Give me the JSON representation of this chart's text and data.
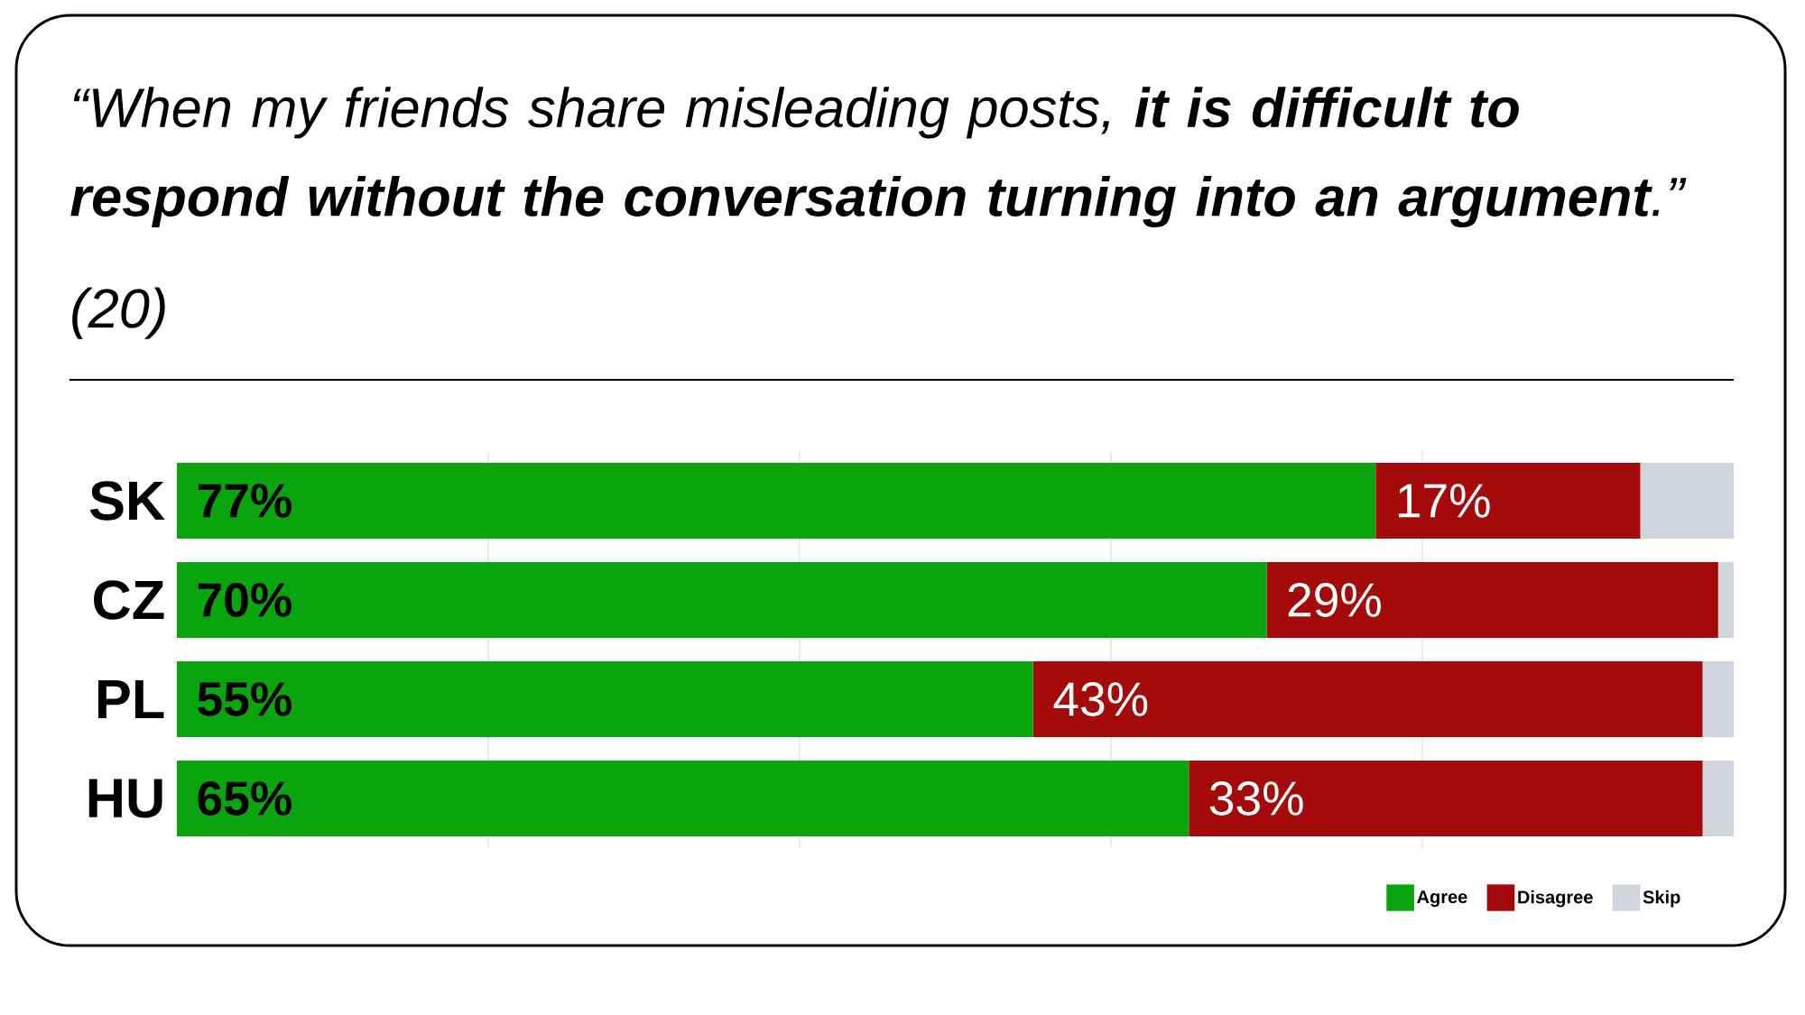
{
  "chart_data": {
    "type": "bar",
    "orientation": "horizontal",
    "stacked": true,
    "title": "“When my friends share misleading posts, **it is difficult to respond without the conversation turning into an argument**.”",
    "subtitle": "(20)",
    "categories": [
      "SK",
      "CZ",
      "PL",
      "HU"
    ],
    "series": [
      {
        "name": "Agree",
        "color": "#0aa50e",
        "values": [
          77,
          70,
          55,
          65
        ],
        "value_labels": [
          "77%",
          "70%",
          "55%",
          "65%"
        ]
      },
      {
        "name": "Disagree",
        "color": "#a50a0a",
        "values": [
          17,
          29,
          43,
          33
        ],
        "value_labels": [
          "17%",
          "29%",
          "43%",
          "33%"
        ]
      },
      {
        "name": "Skip",
        "color": "#d0d5dc",
        "values": [
          6,
          1,
          2,
          2
        ]
      }
    ],
    "xlim": [
      0,
      100
    ],
    "xticks": [
      {
        "value": 20,
        "label": null
      },
      {
        "value": 40,
        "label": null
      },
      {
        "value": 60,
        "label": null
      },
      {
        "value": 80,
        "label": null
      }
    ],
    "tick_labels": "y",
    "grid": "x",
    "legend": "bottom right"
  }
}
